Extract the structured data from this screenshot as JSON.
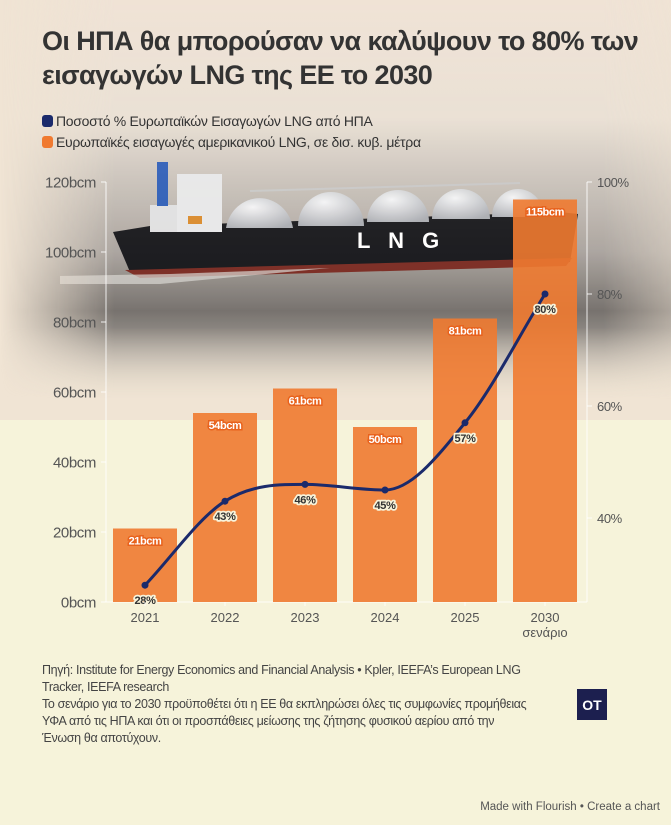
{
  "title": "Οι ΗΠΑ θα μπορούσαν να καλύψουν το 80% των εισαγωγών LNG της ΕΕ το 2030",
  "legend": [
    {
      "label": "Ποσοστό % Ευρωπαϊκών Εισαγωγών LNG από ΗΠΑ",
      "color": "#1b2a6b",
      "icon": "square-swatch"
    },
    {
      "label": "Ευρωπαϊκές εισαγωγές αμερικανικού LNG, σε δισ. κυβ. μέτρα",
      "color": "#f07a30",
      "icon": "square-swatch"
    }
  ],
  "background_image": {
    "description": "LNG tanker ship at sea",
    "hull_text": "L N G"
  },
  "chart_data": {
    "type": "bar+line",
    "title": "Οι ΗΠΑ θα μπορούσαν να καλύψουν το 80% των εισαγωγών LNG της ΕΕ το 2030",
    "categories": [
      "2021",
      "2022",
      "2023",
      "2024",
      "2025",
      "2030 σενάριο"
    ],
    "category_lines": [
      [
        "2021"
      ],
      [
        "2022"
      ],
      [
        "2023"
      ],
      [
        "2024"
      ],
      [
        "2025"
      ],
      [
        "2030",
        "σενάριο"
      ]
    ],
    "series": [
      {
        "name": "Ευρωπαϊκές εισαγωγές αμερικανικού LNG, σε δισ. κυβ. μέτρα",
        "type": "bar",
        "axis": "left",
        "color": "#f07a30",
        "values": [
          21,
          54,
          61,
          50,
          81,
          115
        ],
        "labels": [
          "21bcm",
          "54bcm",
          "61bcm",
          "50bcm",
          "81bcm",
          "115bcm"
        ]
      },
      {
        "name": "Ποσοστό % Ευρωπαϊκών Εισαγωγών LNG από ΗΠΑ",
        "type": "line",
        "axis": "right",
        "color": "#1b2a6b",
        "values": [
          28,
          43,
          46,
          45,
          57,
          80
        ],
        "labels": [
          "28%",
          "43%",
          "46%",
          "45%",
          "57%",
          "80%"
        ]
      }
    ],
    "y_left": {
      "ylim": [
        0,
        120
      ],
      "ticks": [
        0,
        20,
        40,
        60,
        80,
        100,
        120
      ],
      "tick_labels": [
        "0bcm",
        "20bcm",
        "40bcm",
        "60bcm",
        "80bcm",
        "100bcm",
        "120bcm"
      ]
    },
    "y_right": {
      "ylim": [
        25,
        100
      ],
      "ticks": [
        40,
        60,
        80,
        100
      ],
      "tick_labels": [
        "40%",
        "60%",
        "80%",
        "100%"
      ]
    },
    "xlabel": "",
    "ylabel": "",
    "grid": false,
    "legend_position": "top-left"
  },
  "footer": {
    "source": "Πηγή: Institute for Energy Economics and Financial Analysis • Kpler, IEEFA’s European LNG Tracker, IEEFA research",
    "note": "Το σενάριο για το 2030 προϋποθέτει ότι η ΕΕ θα εκπληρώσει όλες τις συμφωνίες προμήθειας ΥΦΑ από τις ΗΠΑ και ότι οι προσπάθειες μείωσης της ζήτησης φυσικού αερίου από την Ένωση θα αποτύχουν."
  },
  "logo": {
    "text": "OT",
    "color": "#1c1f4f"
  },
  "credits": {
    "made_with": "Made with Flourish",
    "separator": " • ",
    "create": "Create a chart"
  }
}
